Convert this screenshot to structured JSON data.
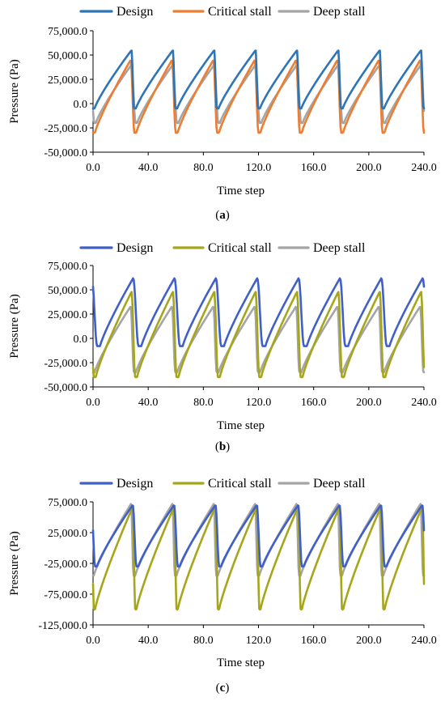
{
  "figure": {
    "background": "#ffffff",
    "series_colors": {
      "Design": "#4060c8",
      "Critical stall": "#a6a61a",
      "Deep stall": "#a5a5a5"
    },
    "panel_a_colors": {
      "Design": "#2e75b6",
      "Critical stall": "#ed7d31",
      "Deep stall": "#a5a5a5"
    }
  },
  "chart_data": [
    {
      "type": "line",
      "caption": "(a)",
      "caption_bold": "a",
      "xlabel": "Time step",
      "ylabel": "Pressure (Pa)",
      "xlim": [
        0,
        240
      ],
      "ylim": [
        -50000,
        75000
      ],
      "x_ticks": [
        "0.0",
        "40.0",
        "80.0",
        "120.0",
        "160.0",
        "200.0",
        "240.0"
      ],
      "y_ticks": [
        "75,000.0",
        "50,000.0",
        "25,000.0",
        "0.0",
        "-25,000.0",
        "-50,000.0"
      ],
      "legend": "top",
      "period": 30,
      "cycles": 8,
      "series": [
        {
          "name": "Design",
          "min": -5000,
          "max": 55000,
          "drop_start": 0.93,
          "drop_end": 0.99,
          "trough_hold": 0.05
        },
        {
          "name": "Critical stall",
          "min": -30000,
          "max": 45000,
          "drop_start": 0.91,
          "drop_end": 1.0,
          "trough_hold": 0.05
        },
        {
          "name": "Deep stall",
          "min": -20000,
          "max": 40000,
          "drop_start": 0.93,
          "drop_end": 1.03,
          "trough_hold": 0.04
        }
      ]
    },
    {
      "type": "line",
      "caption": "(b)",
      "caption_bold": "b",
      "xlabel": "Time step",
      "ylabel": "Pressure (Pa)",
      "xlim": [
        0,
        240
      ],
      "ylim": [
        -50000,
        75000
      ],
      "x_ticks": [
        "0.0",
        "40.0",
        "80.0",
        "120.0",
        "160.0",
        "200.0",
        "240.0"
      ],
      "y_ticks": [
        "75,000.0",
        "50,000.0",
        "25,000.0",
        "0.0",
        "-25,000.0",
        "-50,000.0"
      ],
      "legend": "top",
      "period": 30,
      "cycles": 8,
      "series": [
        {
          "name": "Design",
          "min": -8000,
          "max": 62000,
          "drop_start": 0.97,
          "drop_end": 1.1,
          "trough_hold": 0.08
        },
        {
          "name": "Critical stall",
          "min": -40000,
          "max": 48000,
          "drop_start": 0.93,
          "drop_end": 1.02,
          "trough_hold": 0.05
        },
        {
          "name": "Deep stall",
          "min": -35000,
          "max": 33000,
          "drop_start": 0.91,
          "drop_end": 0.99,
          "trough_hold": 0.05
        }
      ]
    },
    {
      "type": "line",
      "caption": "(c)",
      "caption_bold": "c",
      "xlabel": "Time step",
      "ylabel": "Pressure (Pa)",
      "xlim": [
        0,
        240
      ],
      "ylim": [
        -125000,
        75000
      ],
      "x_ticks": [
        "0.0",
        "40.0",
        "80.0",
        "120.0",
        "160.0",
        "200.0",
        "240.0"
      ],
      "y_ticks": [
        "75,000.0",
        "25,000.0",
        "-25,000.0",
        "-75,000.0",
        "-125,000.0"
      ],
      "legend": "top",
      "period": 30,
      "cycles": 8,
      "series": [
        {
          "name": "Design",
          "min": -30000,
          "max": 70000,
          "drop_start": 0.96,
          "drop_end": 1.05,
          "trough_hold": 0.05
        },
        {
          "name": "Critical stall",
          "min": -100000,
          "max": 67000,
          "drop_start": 0.96,
          "drop_end": 1.02,
          "trough_hold": 0.03
        },
        {
          "name": "Deep stall",
          "min": -45000,
          "max": 72000,
          "drop_start": 0.92,
          "drop_end": 0.98,
          "trough_hold": 0.04
        }
      ]
    }
  ]
}
